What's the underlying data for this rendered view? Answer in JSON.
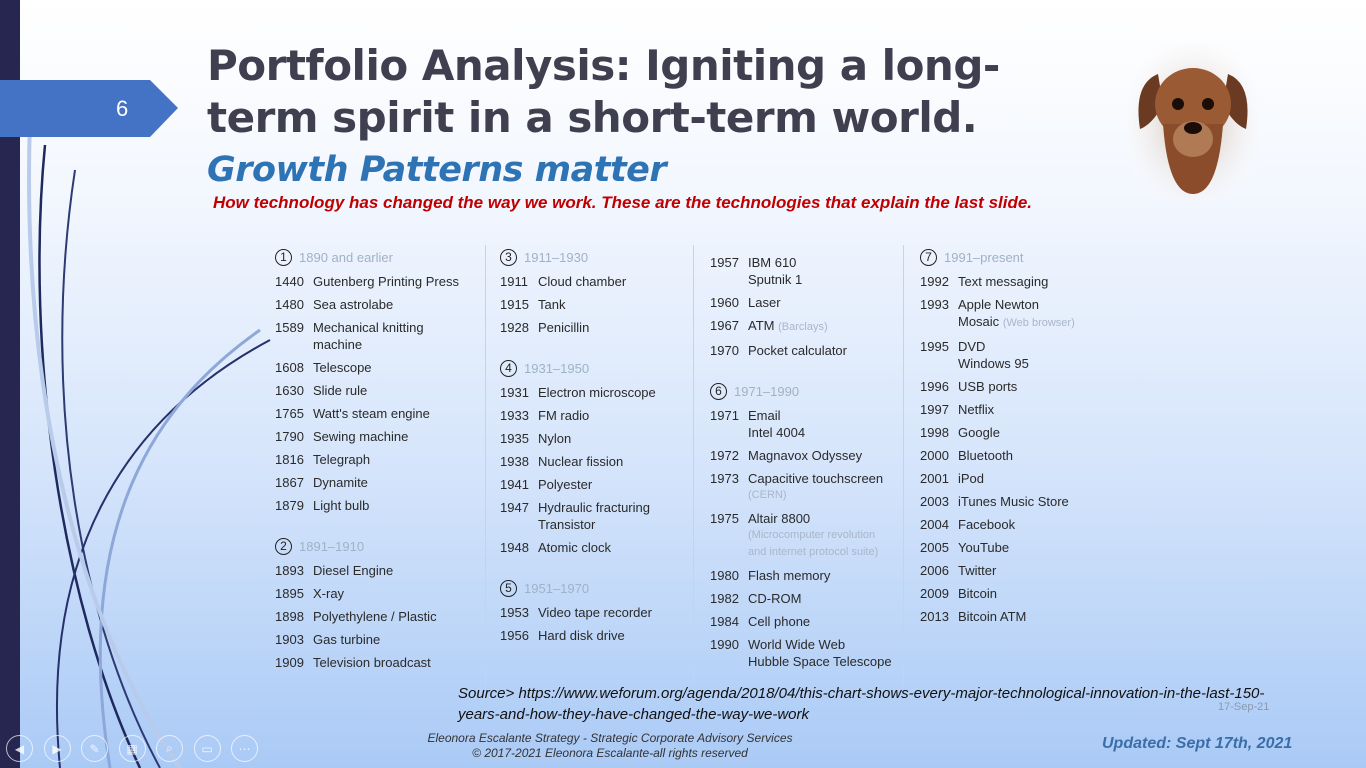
{
  "slide": {
    "number": "6",
    "title": "Portfolio Analysis: Igniting a long-term spirit in a short-term world.",
    "subtitle": "Growth Patterns matter",
    "description": "How technology has changed the way we work. These are the technologies that explain the last slide.",
    "accent_color": "#4472c4",
    "subtitle_color": "#2e74b5",
    "description_color": "#c00000"
  },
  "columns": [
    [
      {
        "type": "header",
        "num": "1",
        "label": "1890 and earlier"
      },
      {
        "year": "1440",
        "lines": [
          "Gutenberg Printing Press"
        ]
      },
      {
        "year": "1480",
        "lines": [
          "Sea astrolabe"
        ]
      },
      {
        "year": "1589",
        "lines": [
          "Mechanical knitting",
          "machine"
        ]
      },
      {
        "year": "1608",
        "lines": [
          "Telescope"
        ]
      },
      {
        "year": "1630",
        "lines": [
          "Slide rule"
        ]
      },
      {
        "year": "1765",
        "lines": [
          "Watt's steam engine"
        ]
      },
      {
        "year": "1790",
        "lines": [
          "Sewing machine"
        ]
      },
      {
        "year": "1816",
        "lines": [
          "Telegraph"
        ]
      },
      {
        "year": "1867",
        "lines": [
          "Dynamite"
        ]
      },
      {
        "year": "1879",
        "lines": [
          "Light bulb"
        ]
      },
      {
        "type": "header",
        "num": "2",
        "label": "1891–1910"
      },
      {
        "year": "1893",
        "lines": [
          "Diesel Engine"
        ]
      },
      {
        "year": "1895",
        "lines": [
          "X-ray"
        ]
      },
      {
        "year": "1898",
        "lines": [
          "Polyethylene / Plastic"
        ]
      },
      {
        "year": "1903",
        "lines": [
          "Gas turbine"
        ]
      },
      {
        "year": "1909",
        "lines": [
          "Television broadcast"
        ]
      }
    ],
    [
      {
        "type": "header",
        "num": "3",
        "label": "1911–1930"
      },
      {
        "year": "1911",
        "lines": [
          "Cloud chamber"
        ]
      },
      {
        "year": "1915",
        "lines": [
          "Tank"
        ]
      },
      {
        "year": "1928",
        "lines": [
          "Penicillin"
        ]
      },
      {
        "type": "header",
        "num": "4",
        "label": "1931–1950"
      },
      {
        "year": "1931",
        "lines": [
          "Electron microscope"
        ]
      },
      {
        "year": "1933",
        "lines": [
          "FM radio"
        ]
      },
      {
        "year": "1935",
        "lines": [
          "Nylon"
        ]
      },
      {
        "year": "1938",
        "lines": [
          "Nuclear fission"
        ]
      },
      {
        "year": "1941",
        "lines": [
          "Polyester"
        ]
      },
      {
        "year": "1947",
        "lines": [
          "Hydraulic fracturing",
          "Transistor"
        ]
      },
      {
        "year": "1948",
        "lines": [
          "Atomic clock"
        ]
      },
      {
        "type": "header",
        "num": "5",
        "label": "1951–1970"
      },
      {
        "year": "1953",
        "lines": [
          "Video tape recorder"
        ]
      },
      {
        "year": "1956",
        "lines": [
          "Hard disk drive"
        ]
      }
    ],
    [
      {
        "year": "1957",
        "lines": [
          "IBM 610",
          "Sputnik 1"
        ]
      },
      {
        "year": "1960",
        "lines": [
          "Laser"
        ]
      },
      {
        "year": "1967",
        "lines": [
          "ATM"
        ],
        "note": "(Barclays)"
      },
      {
        "year": "1970",
        "lines": [
          "Pocket calculator"
        ]
      },
      {
        "type": "header",
        "num": "6",
        "label": "1971–1990"
      },
      {
        "year": "1971",
        "lines": [
          "Email",
          "Intel 4004"
        ]
      },
      {
        "year": "1972",
        "lines": [
          "Magnavox Odyssey"
        ]
      },
      {
        "year": "1973",
        "lines": [
          "Capacitive touchscreen"
        ],
        "notelines": [
          "(CERN)"
        ]
      },
      {
        "year": "1975",
        "lines": [
          "Altair 8800"
        ],
        "notelines": [
          "(Microcomputer revolution",
          "and internet protocol suite)"
        ]
      },
      {
        "year": "1980",
        "lines": [
          "Flash memory"
        ]
      },
      {
        "year": "1982",
        "lines": [
          "CD-ROM"
        ]
      },
      {
        "year": "1984",
        "lines": [
          "Cell phone"
        ]
      },
      {
        "year": "1990",
        "lines": [
          "World Wide Web",
          "Hubble Space Telescope"
        ]
      }
    ],
    [
      {
        "type": "header",
        "num": "7",
        "label": "1991–present"
      },
      {
        "year": "1992",
        "lines": [
          "Text messaging"
        ]
      },
      {
        "year": "1993",
        "lines": [
          "Apple Newton",
          "Mosaic"
        ],
        "note": "(Web browser)"
      },
      {
        "year": "1995",
        "lines": [
          "DVD",
          "Windows 95"
        ]
      },
      {
        "year": "1996",
        "lines": [
          "USB ports"
        ]
      },
      {
        "year": "1997",
        "lines": [
          "Netflix"
        ]
      },
      {
        "year": "1998",
        "lines": [
          "Google"
        ]
      },
      {
        "year": "2000",
        "lines": [
          "Bluetooth"
        ]
      },
      {
        "year": "2001",
        "lines": [
          "iPod"
        ]
      },
      {
        "year": "2003",
        "lines": [
          "iTunes Music Store"
        ]
      },
      {
        "year": "2004",
        "lines": [
          "Facebook"
        ]
      },
      {
        "year": "2005",
        "lines": [
          "YouTube"
        ]
      },
      {
        "year": "2006",
        "lines": [
          "Twitter"
        ]
      },
      {
        "year": "2009",
        "lines": [
          "Bitcoin"
        ]
      },
      {
        "year": "2013",
        "lines": [
          "Bitcoin ATM"
        ]
      }
    ]
  ],
  "source": "Source>  https://www.weforum.org/agenda/2018/04/this-chart-shows-every-major-technological-innovation-in-the-last-150-years-and-how-they-have-changed-the-way-we-work",
  "date": "17-Sep-21",
  "footer": {
    "line1": "Eleonora Escalante Strategy - Strategic Corporate Advisory Services",
    "line2": "© 2017-2021  Eleonora Escalante-all rights reserved"
  },
  "updated": "Updated:  Sept 17th, 2021",
  "nav_icons": [
    "previous-icon",
    "next-icon",
    "pen-icon",
    "slides-grid-icon",
    "zoom-icon",
    "subtitles-icon",
    "more-icon"
  ]
}
